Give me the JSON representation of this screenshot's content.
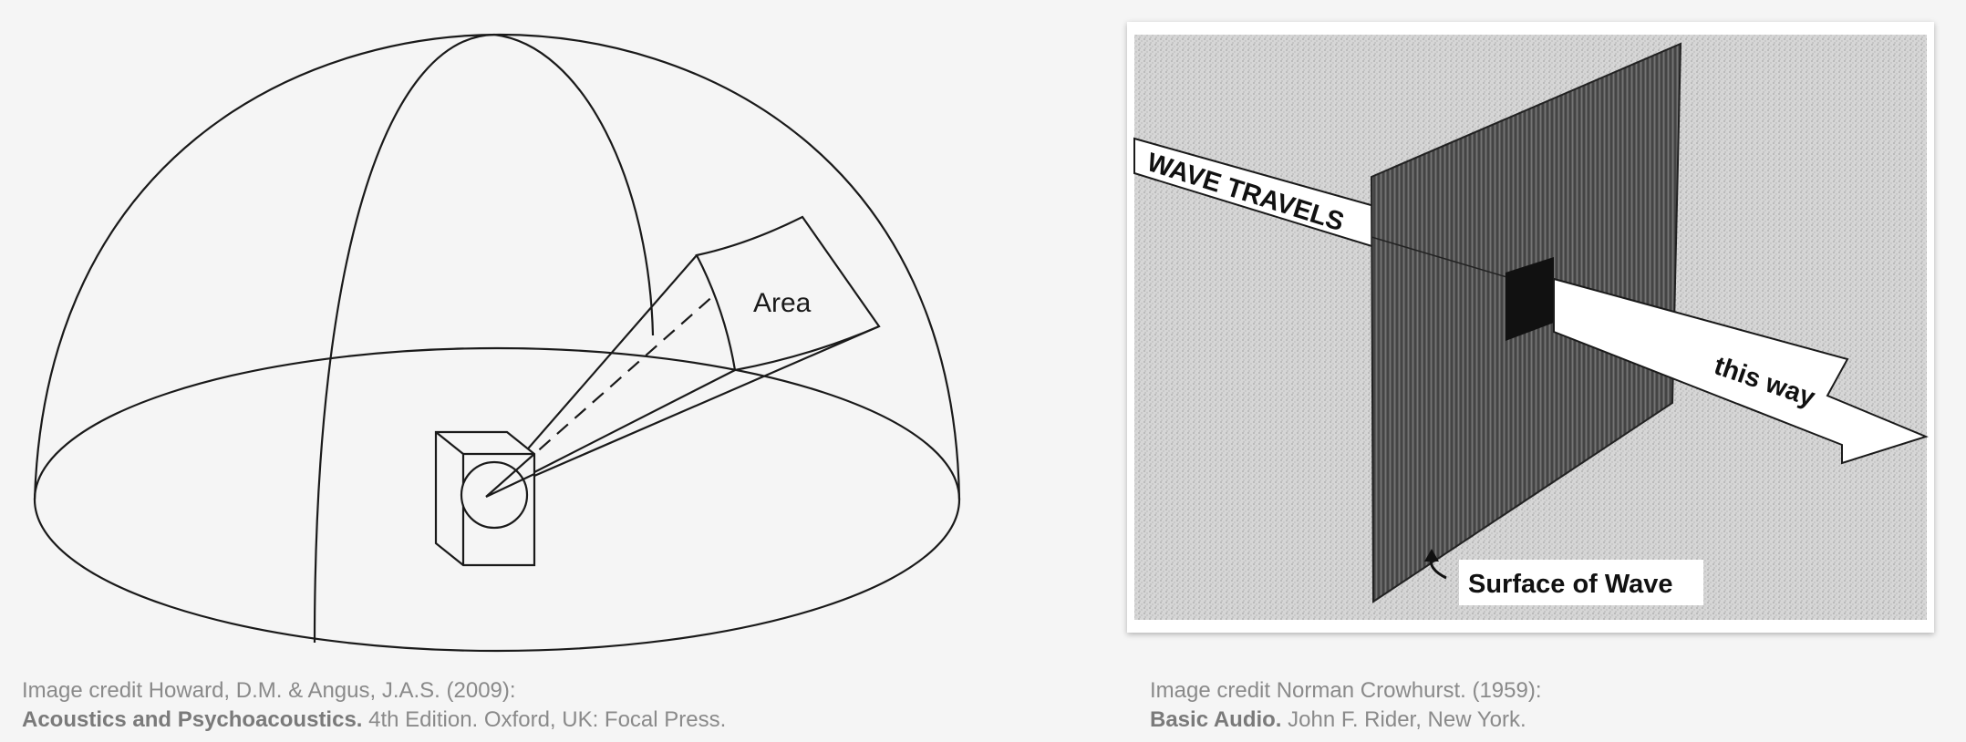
{
  "left_figure": {
    "area_label": "Area"
  },
  "right_figure": {
    "arrow_text_1": "WAVE TRAVELS",
    "arrow_text_2": "this way",
    "surface_label": "Surface of Wave"
  },
  "captions": {
    "left": {
      "credit": "Image credit Howard, D.M. & Angus, J.A.S. (2009):",
      "title": "Acoustics and Psychoacoustics.",
      "rest": " 4th Edition. Oxford, UK: Focal Press."
    },
    "right": {
      "credit": "Image credit Norman Crowhurst. (1959):",
      "title": "Basic Audio.",
      "rest": " John F. Rider, New York."
    }
  }
}
